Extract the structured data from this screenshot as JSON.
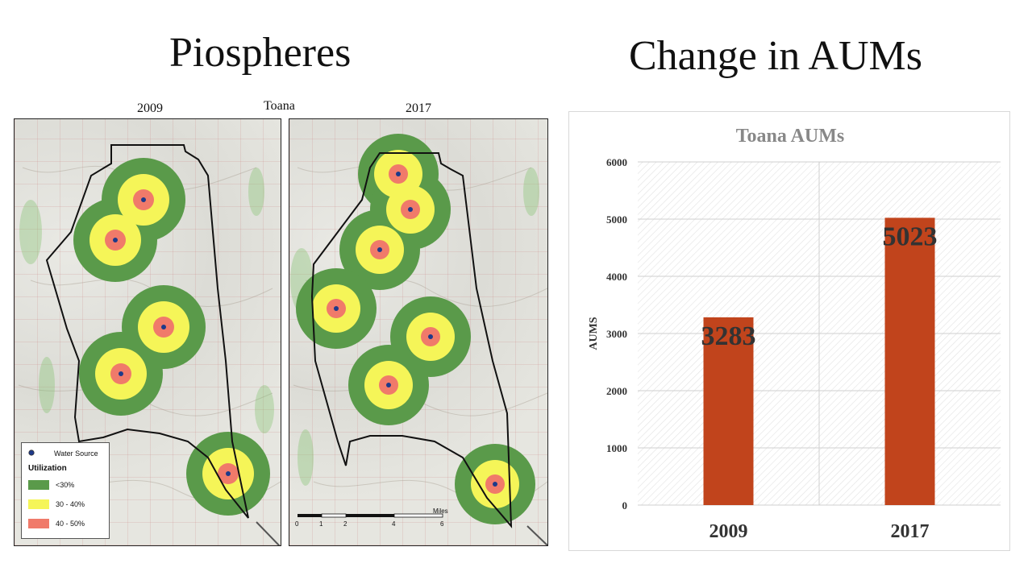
{
  "left_title": "Piospheres",
  "right_title": "Change in AUMs",
  "maps": {
    "label_2009": "2009",
    "label_center": "Toana",
    "label_2017": "2017",
    "legend": {
      "water_source": "Water Source",
      "heading": "Utilization",
      "items": [
        {
          "label": "<30%",
          "color": "#5a9a4a"
        },
        {
          "label": "30 - 40%",
          "color": "#f5f558"
        },
        {
          "label": "40 - 50%",
          "color": "#f07a6a"
        }
      ]
    },
    "scalebar": {
      "ticks": [
        "0",
        "1",
        "2",
        "4",
        "6"
      ],
      "unit": "Miles"
    }
  },
  "chart_data": {
    "type": "bar",
    "title": "Toana  AUMs",
    "categories": [
      "2009",
      "2017"
    ],
    "values": [
      3283,
      5023
    ],
    "data_labels": [
      "3283",
      "5023"
    ],
    "ylabel": "AUMS",
    "xlabel": "",
    "ylim": [
      0,
      6000
    ],
    "yticks": [
      "0",
      "1000",
      "2000",
      "3000",
      "4000",
      "5000",
      "6000"
    ],
    "bar_color": "#c1441c",
    "grid": true
  }
}
